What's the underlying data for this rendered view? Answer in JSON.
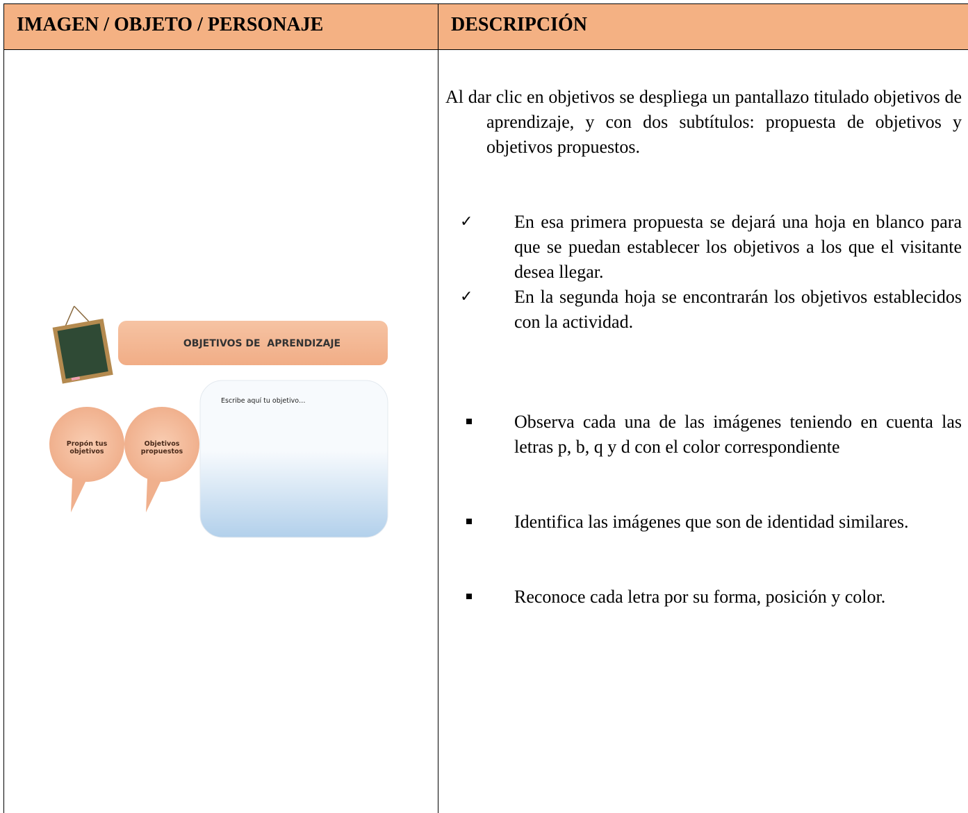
{
  "table": {
    "headers": [
      "IMAGEN / OBJETO / PERSONAJE",
      "DESCRIPCIÓN"
    ]
  },
  "image": {
    "title": "OBJETIVOS DE  APRENDIZAJE",
    "textbox": "Escribe aquí tu objetivo…",
    "bubbles": [
      "Propón tus objetivos",
      "Objetivos propuestos"
    ]
  },
  "description": {
    "intro": "Al dar clic en objetivos se despliega un pantallazo titulado objetivos de aprendizaje, y con dos subtítulos: propuesta de objetivos y objetivos propuestos.",
    "checks": [
      "En esa primera propuesta se dejará una hoja en blanco para que se puedan establecer los objetivos a los que el visitante desea llegar.",
      "En la segunda hoja se encontrarán los objetivos establecidos con la actividad."
    ],
    "bullets": [
      "Observa cada una de las imágenes teniendo en cuenta las letras p, b, q y d con el color correspondiente",
      "Identifica las imágenes que son de identidad similares.",
      "Reconoce cada letra por su forma, posición y color."
    ]
  }
}
